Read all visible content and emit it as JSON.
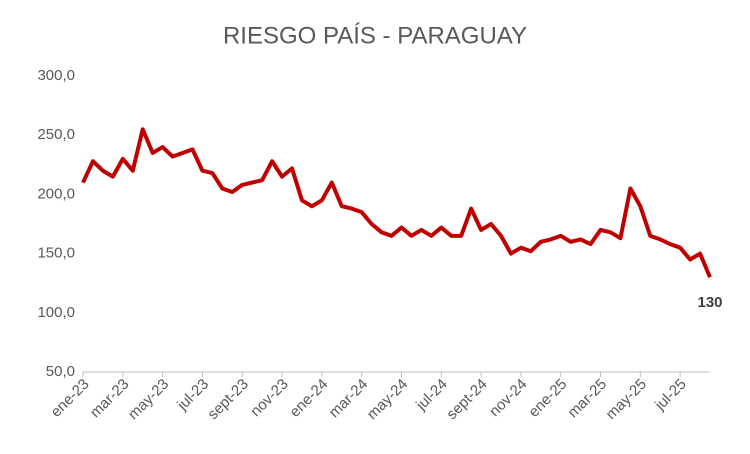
{
  "chart_data": {
    "type": "line",
    "title": "RIESGO PAÍS - PARAGUAY",
    "categories": [
      "ene-23",
      null,
      null,
      null,
      "mar-23",
      null,
      null,
      null,
      "may-23",
      null,
      null,
      null,
      "jul-23",
      null,
      null,
      null,
      "sept-23",
      null,
      null,
      null,
      "nov-23",
      null,
      null,
      null,
      "ene-24",
      null,
      null,
      null,
      "mar-24",
      null,
      null,
      null,
      "may-24",
      null,
      null,
      null,
      "jul-24",
      null,
      null,
      null,
      "sept-24",
      null,
      null,
      null,
      "nov-24",
      null,
      null,
      null,
      "ene-25",
      null,
      null,
      null,
      "mar-25",
      null,
      null,
      null,
      "may-25",
      null,
      null,
      null,
      "jul-25",
      null,
      null,
      null
    ],
    "series": [
      {
        "name": "Riesgo País",
        "color": "#c00000",
        "values": [
          210,
          228,
          220,
          215,
          230,
          220,
          255,
          235,
          240,
          232,
          235,
          238,
          220,
          218,
          205,
          202,
          208,
          210,
          212,
          228,
          215,
          222,
          195,
          190,
          195,
          210,
          190,
          188,
          185,
          175,
          168,
          165,
          172,
          165,
          170,
          165,
          172,
          165,
          165,
          188,
          170,
          175,
          165,
          150,
          155,
          152,
          160,
          162,
          165,
          160,
          162,
          158,
          170,
          168,
          163,
          205,
          190,
          165,
          162,
          158,
          155,
          145,
          150,
          130
        ]
      }
    ],
    "ylim": [
      50,
      300
    ],
    "yticks": [
      {
        "value": 50,
        "label": "50,0"
      },
      {
        "value": 100,
        "label": "100,0"
      },
      {
        "value": 150,
        "label": "150,0"
      },
      {
        "value": 200,
        "label": "200,0"
      },
      {
        "value": 250,
        "label": "250,0"
      },
      {
        "value": 300,
        "label": "300,0"
      }
    ]
  }
}
